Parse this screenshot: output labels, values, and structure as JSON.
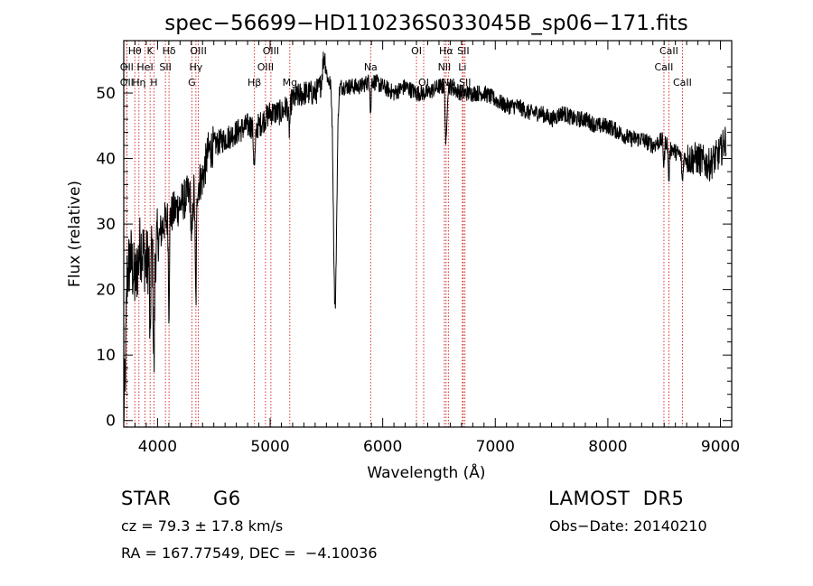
{
  "chart_data": {
    "type": "line",
    "title": "spec−56699−HD110236S033045B_sp06−171.fits",
    "xlabel": "Wavelength (Å)",
    "ylabel": "Flux (relative)",
    "xlim": [
      3700,
      9100
    ],
    "ylim": [
      -1,
      58
    ],
    "xticks": [
      4000,
      5000,
      6000,
      7000,
      8000,
      9000
    ],
    "yticks": [
      0,
      10,
      20,
      30,
      40,
      50
    ],
    "line_color": "#000000",
    "marker_color": "#cc0000",
    "spectrum_anchors": [
      [
        3700,
        0
      ],
      [
        3715,
        8
      ],
      [
        3730,
        22
      ],
      [
        3760,
        25
      ],
      [
        3800,
        21
      ],
      [
        3850,
        27
      ],
      [
        3900,
        24
      ],
      [
        3950,
        26
      ],
      [
        4000,
        27
      ],
      [
        4050,
        30
      ],
      [
        4100,
        31
      ],
      [
        4200,
        33
      ],
      [
        4300,
        35
      ],
      [
        4350,
        36
      ],
      [
        4400,
        37
      ],
      [
        4450,
        41
      ],
      [
        4500,
        42
      ],
      [
        4600,
        43
      ],
      [
        4700,
        44
      ],
      [
        4800,
        45
      ],
      [
        4900,
        45
      ],
      [
        5000,
        47
      ],
      [
        5100,
        47
      ],
      [
        5200,
        49
      ],
      [
        5300,
        50
      ],
      [
        5400,
        50
      ],
      [
        5500,
        52
      ],
      [
        5600,
        51
      ],
      [
        5700,
        51
      ],
      [
        5800,
        51
      ],
      [
        5900,
        52
      ],
      [
        6000,
        51
      ],
      [
        6100,
        50
      ],
      [
        6200,
        51
      ],
      [
        6300,
        50
      ],
      [
        6400,
        50
      ],
      [
        6500,
        51
      ],
      [
        6600,
        51
      ],
      [
        6700,
        50
      ],
      [
        6800,
        50
      ],
      [
        6900,
        50
      ],
      [
        7000,
        49
      ],
      [
        7100,
        48
      ],
      [
        7200,
        48
      ],
      [
        7300,
        47
      ],
      [
        7400,
        47
      ],
      [
        7500,
        46
      ],
      [
        7600,
        47
      ],
      [
        7700,
        46
      ],
      [
        7800,
        46
      ],
      [
        7900,
        45
      ],
      [
        8000,
        45
      ],
      [
        8100,
        44
      ],
      [
        8200,
        43
      ],
      [
        8300,
        43
      ],
      [
        8400,
        42
      ],
      [
        8500,
        43
      ],
      [
        8540,
        42
      ],
      [
        8600,
        41
      ],
      [
        8700,
        40
      ],
      [
        8800,
        40
      ],
      [
        8900,
        39
      ],
      [
        9000,
        41
      ],
      [
        9050,
        43
      ]
    ],
    "spectrum_features": [
      [
        3968,
        8,
        18
      ],
      [
        3934,
        6,
        16
      ],
      [
        4101,
        6,
        14
      ],
      [
        4340,
        8,
        18
      ],
      [
        4305,
        10,
        8
      ],
      [
        4861,
        12,
        6
      ],
      [
        5170,
        10,
        4
      ],
      [
        5577,
        20,
        34
      ],
      [
        5893,
        6,
        5
      ],
      [
        6563,
        10,
        9
      ],
      [
        8498,
        8,
        4
      ],
      [
        8542,
        8,
        5
      ],
      [
        8662,
        8,
        4
      ],
      [
        5480,
        20,
        -4
      ]
    ],
    "lines": [
      {
        "label": "Hθ",
        "wavelength": 3798,
        "row": 1
      },
      {
        "label": "K",
        "wavelength": 3934,
        "row": 1
      },
      {
        "label": "Hδ",
        "wavelength": 4102,
        "row": 1
      },
      {
        "label": "OII",
        "wavelength": 3727,
        "row": 2
      },
      {
        "label": "HeI",
        "wavelength": 3889,
        "row": 2
      },
      {
        "label": "SII",
        "wavelength": 4070,
        "row": 2
      },
      {
        "label": "OII",
        "wavelength": 3727,
        "row": 3
      },
      {
        "label": "Hη",
        "wavelength": 3835,
        "row": 3
      },
      {
        "label": "H",
        "wavelength": 3968,
        "row": 3
      },
      {
        "label": "OIII",
        "wavelength": 4363,
        "row": 1
      },
      {
        "label": "Hγ",
        "wavelength": 4341,
        "row": 2
      },
      {
        "label": "G",
        "wavelength": 4305,
        "row": 3
      },
      {
        "label": "OIII",
        "wavelength": 5007,
        "row": 1
      },
      {
        "label": "OIII",
        "wavelength": 4959,
        "row": 2
      },
      {
        "label": "Hβ",
        "wavelength": 4861,
        "row": 3
      },
      {
        "label": "Mg",
        "wavelength": 5175,
        "row": 3
      },
      {
        "label": "Na",
        "wavelength": 5893,
        "row": 2
      },
      {
        "label": "OI",
        "wavelength": 6300,
        "row": 1
      },
      {
        "label": "OI",
        "wavelength": 6364,
        "row": 3
      },
      {
        "label": "Hα",
        "wavelength": 6563,
        "row": 1
      },
      {
        "label": "SII",
        "wavelength": 6716,
        "row": 1
      },
      {
        "label": "NII",
        "wavelength": 6548,
        "row": 2
      },
      {
        "label": "Li",
        "wavelength": 6708,
        "row": 2
      },
      {
        "label": "NII",
        "wavelength": 6583,
        "row": 3
      },
      {
        "label": "SII",
        "wavelength": 6731,
        "row": 3
      },
      {
        "label": "CaII",
        "wavelength": 8542,
        "row": 1
      },
      {
        "label": "CaII",
        "wavelength": 8498,
        "row": 2
      },
      {
        "label": "CaII",
        "wavelength": 8662,
        "row": 3
      }
    ]
  },
  "info": {
    "object_class": "STAR",
    "subclass": "G6",
    "survey": "LAMOST  DR5",
    "redshift": "cz = 79.3 ± 17.8 km/s",
    "obs_date": "Obs−Date: 20140210",
    "coordinates": "RA = 167.77549, DEC =  −4.10036"
  }
}
